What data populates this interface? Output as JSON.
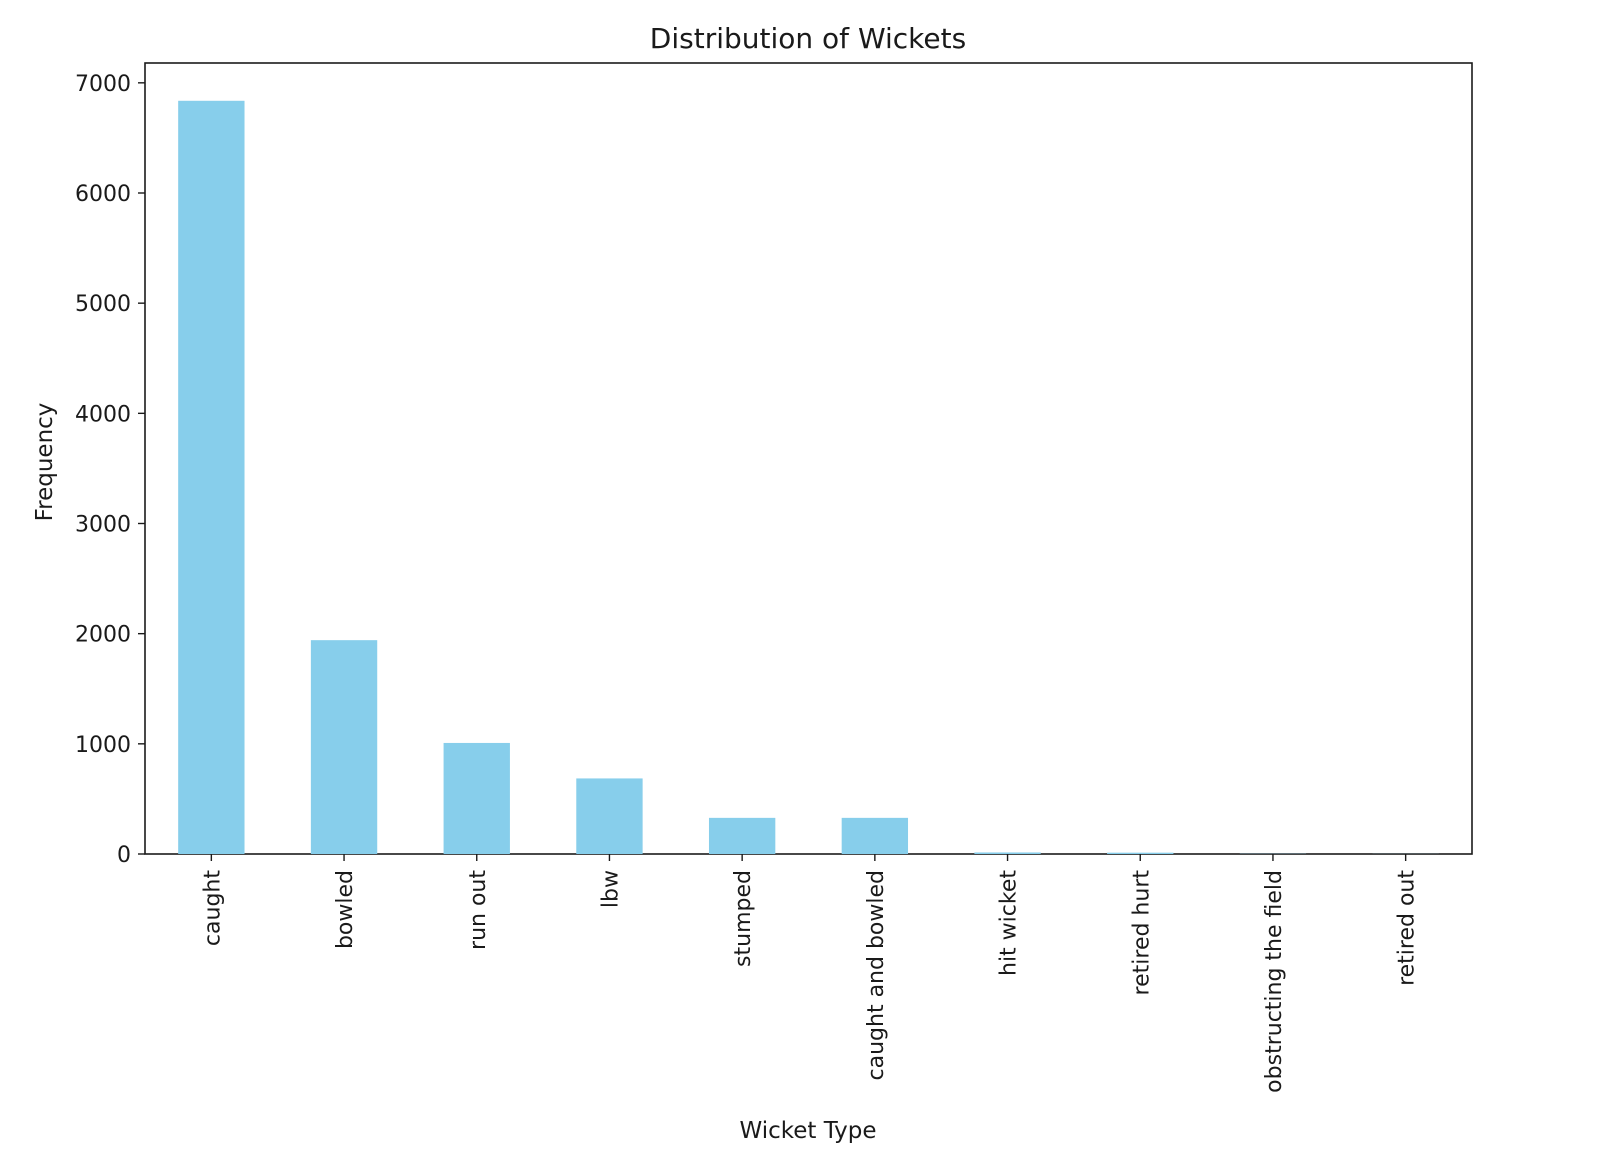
{
  "chart_data": {
    "type": "bar",
    "title": "Distribution of Wickets",
    "xlabel": "Wicket Type",
    "ylabel": "Frequency",
    "categories": [
      "caught",
      "bowled",
      "run out",
      "lbw",
      "stumped",
      "caught and bowled",
      "hit wicket",
      "retired hurt",
      "obstructing the field",
      "retired out"
    ],
    "values": [
      6837,
      1941,
      1008,
      686,
      328,
      328,
      14,
      12,
      2,
      1
    ],
    "ylim": [
      0,
      7180
    ],
    "yticks": [
      0,
      1000,
      2000,
      3000,
      4000,
      5000,
      6000,
      7000
    ],
    "grid": false,
    "legend": false,
    "bar_color": "#87ceeb",
    "axis_color": "#1a1a1a"
  }
}
